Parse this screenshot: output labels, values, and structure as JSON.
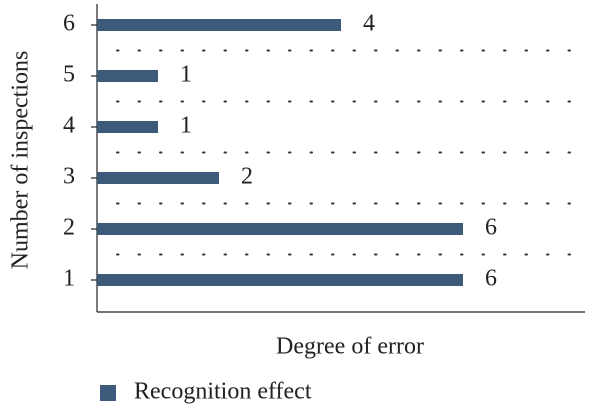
{
  "chart_data": {
    "type": "bar",
    "orientation": "horizontal",
    "x_label": "Degree of error",
    "y_label": "Number of inspections",
    "categories": [
      "1",
      "2",
      "3",
      "4",
      "5",
      "6"
    ],
    "series": [
      {
        "name": "Recognition effect",
        "color": "#3d5a7a",
        "values": [
          6,
          6,
          2,
          1,
          1,
          4
        ]
      }
    ],
    "xlim": [
      0,
      8
    ],
    "grid": true,
    "legend": "bottom-left"
  }
}
